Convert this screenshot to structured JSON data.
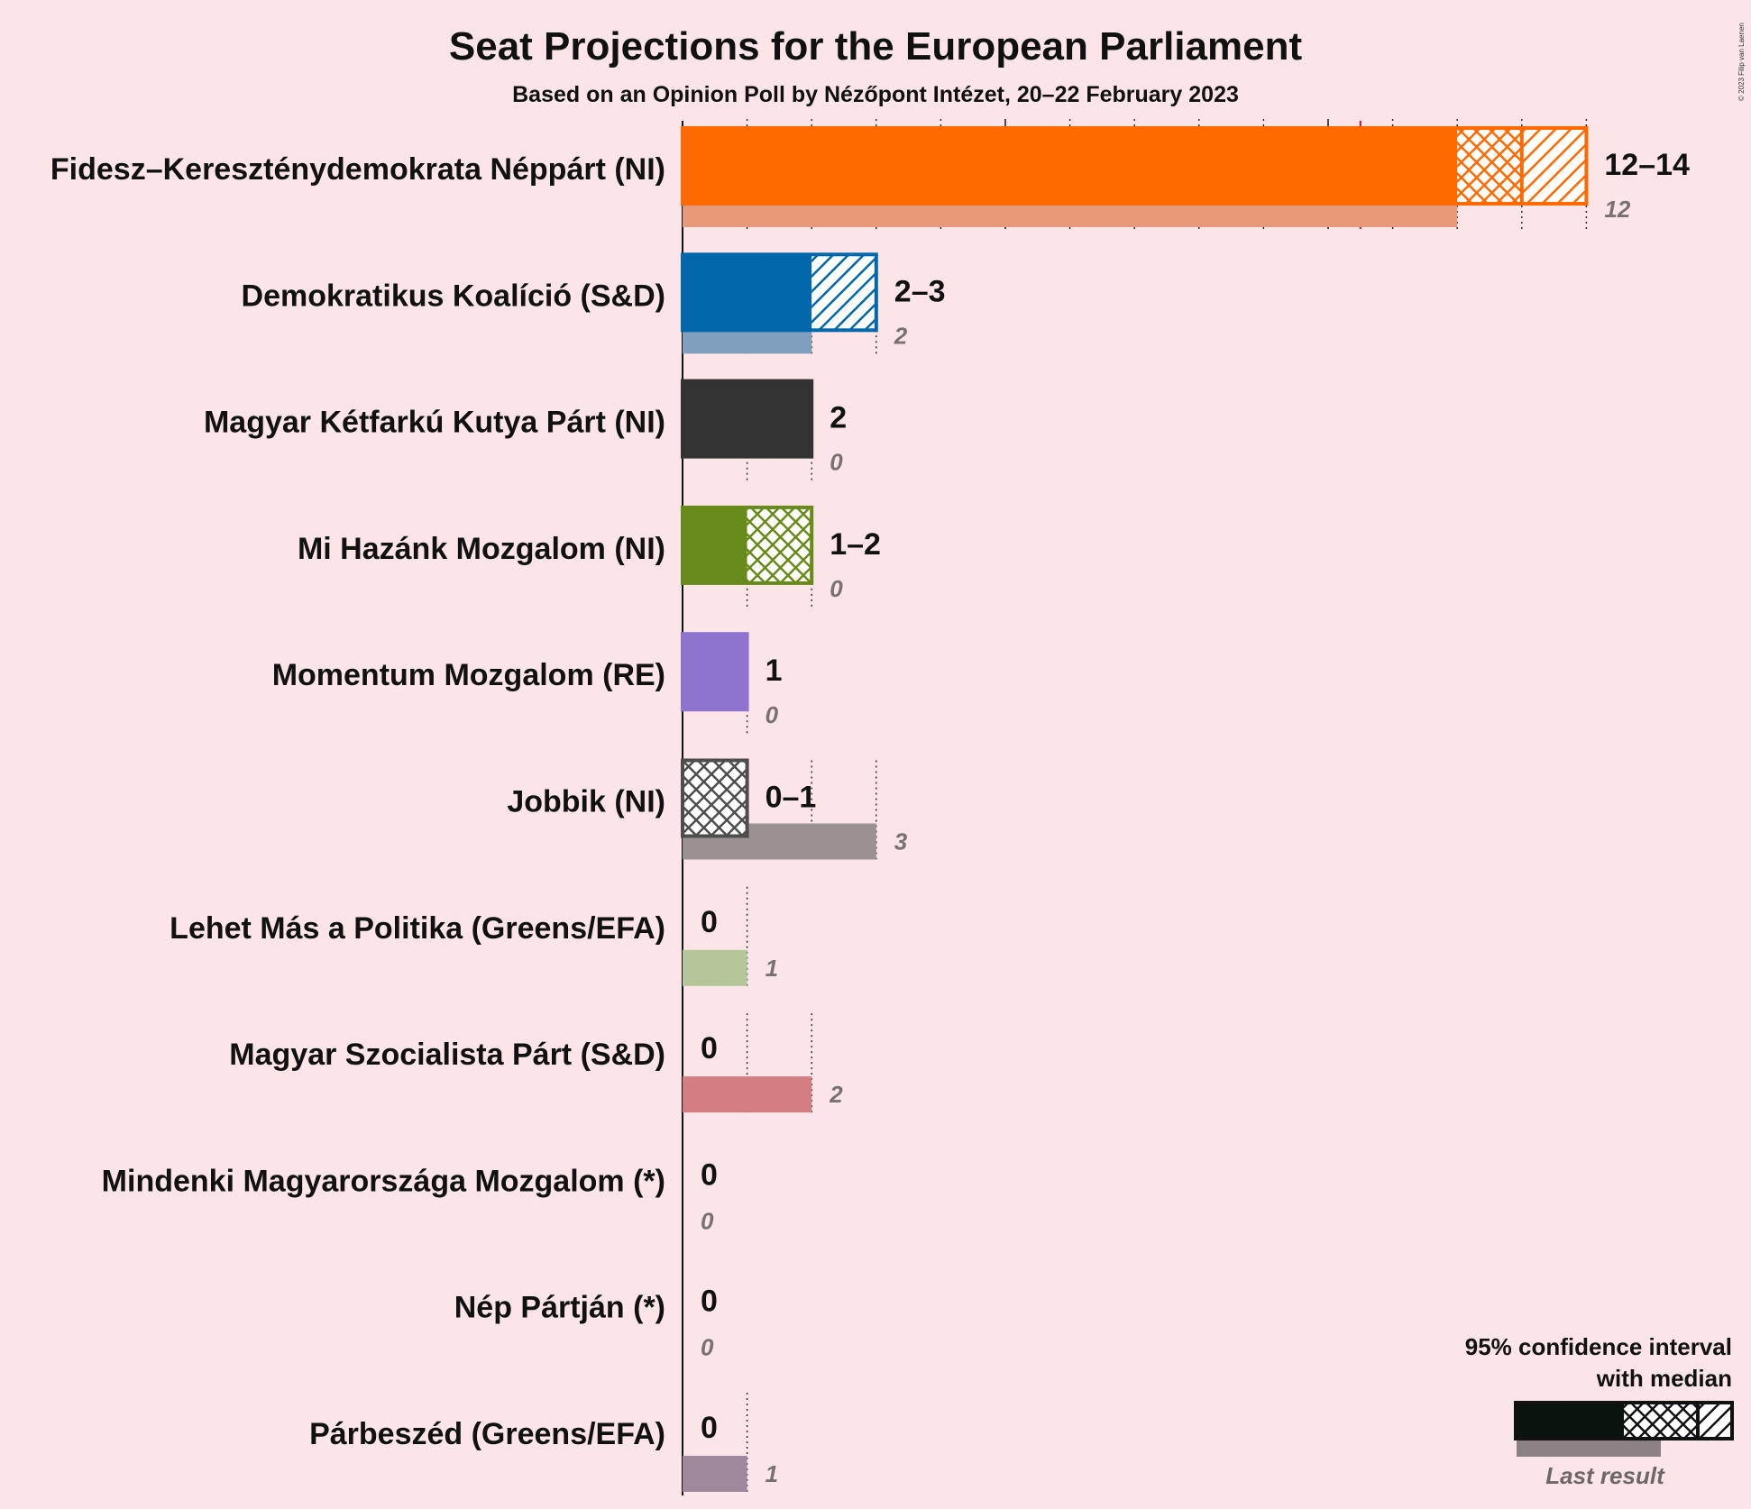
{
  "chart_data": {
    "type": "bar",
    "title": "Seat Projections for the European Parliament",
    "subtitle": "Based on an Opinion Poll by Nézőpont Intézet, 20–22 February 2023",
    "copyright": "© 2023 Filip van Laenen",
    "majority_line": 10.5,
    "parties": [
      {
        "name": "Fidesz–Kereszténydemokrata Néppárt (NI)",
        "low": 12,
        "median": 13,
        "high": 14,
        "range_label": "12–14",
        "last": 12,
        "last_label": "12",
        "color": "#ff6a00",
        "last_color": "#e89a78"
      },
      {
        "name": "Demokratikus Koalíció (S&D)",
        "low": 2,
        "median": 2,
        "high": 3,
        "range_label": "2–3",
        "last": 2,
        "last_label": "2",
        "color": "#0067aa",
        "last_color": "#7f9fbd"
      },
      {
        "name": "Magyar Kétfarkú Kutya Párt (NI)",
        "low": 2,
        "median": 2,
        "high": 2,
        "range_label": "2",
        "last": 0,
        "last_label": "0",
        "color": "#333333",
        "last_color": "#999999"
      },
      {
        "name": "Mi Hazánk Mozgalom (NI)",
        "low": 1,
        "median": 2,
        "high": 2,
        "range_label": "1–2",
        "last": 0,
        "last_label": "0",
        "color": "#688a1a",
        "last_color": "#a9bb84"
      },
      {
        "name": "Momentum Mozgalom (RE)",
        "low": 1,
        "median": 1,
        "high": 1,
        "range_label": "1",
        "last": 0,
        "last_label": "0",
        "color": "#8e74cf",
        "last_color": "#b7a8df"
      },
      {
        "name": "Jobbik (NI)",
        "low": 0,
        "median": 1,
        "high": 1,
        "range_label": "0–1",
        "last": 3,
        "last_label": "3",
        "color": "#4d4d4d",
        "last_color": "#9b9193"
      },
      {
        "name": "Lehet Más a Politika (Greens/EFA)",
        "low": 0,
        "median": 0,
        "high": 0,
        "range_label": "0",
        "last": 1,
        "last_label": "1",
        "color": "#6a9c3a",
        "last_color": "#b5c79a"
      },
      {
        "name": "Magyar Szocialista Párt (S&D)",
        "low": 0,
        "median": 0,
        "high": 0,
        "range_label": "0",
        "last": 2,
        "last_label": "2",
        "color": "#c8202a",
        "last_color": "#d37e83"
      },
      {
        "name": "Mindenki Magyarországa Mozgalom (*)",
        "low": 0,
        "median": 0,
        "high": 0,
        "range_label": "0",
        "last": 0,
        "last_label": "0",
        "color": "#888888",
        "last_color": "#bbbbbb"
      },
      {
        "name": "Nép Pártján (*)",
        "low": 0,
        "median": 0,
        "high": 0,
        "range_label": "0",
        "last": 0,
        "last_label": "0",
        "color": "#888888",
        "last_color": "#bbbbbb"
      },
      {
        "name": "Párbeszéd (Greens/EFA)",
        "low": 0,
        "median": 0,
        "high": 0,
        "range_label": "0",
        "last": 1,
        "last_label": "1",
        "color": "#6b4d7e",
        "last_color": "#a0899d"
      }
    ],
    "legend": {
      "line1": "95% confidence interval",
      "line2": "with median",
      "last_result": "Last result"
    },
    "colors": {
      "majority_line": "#c8102e",
      "background": "#fbe5e8"
    }
  }
}
